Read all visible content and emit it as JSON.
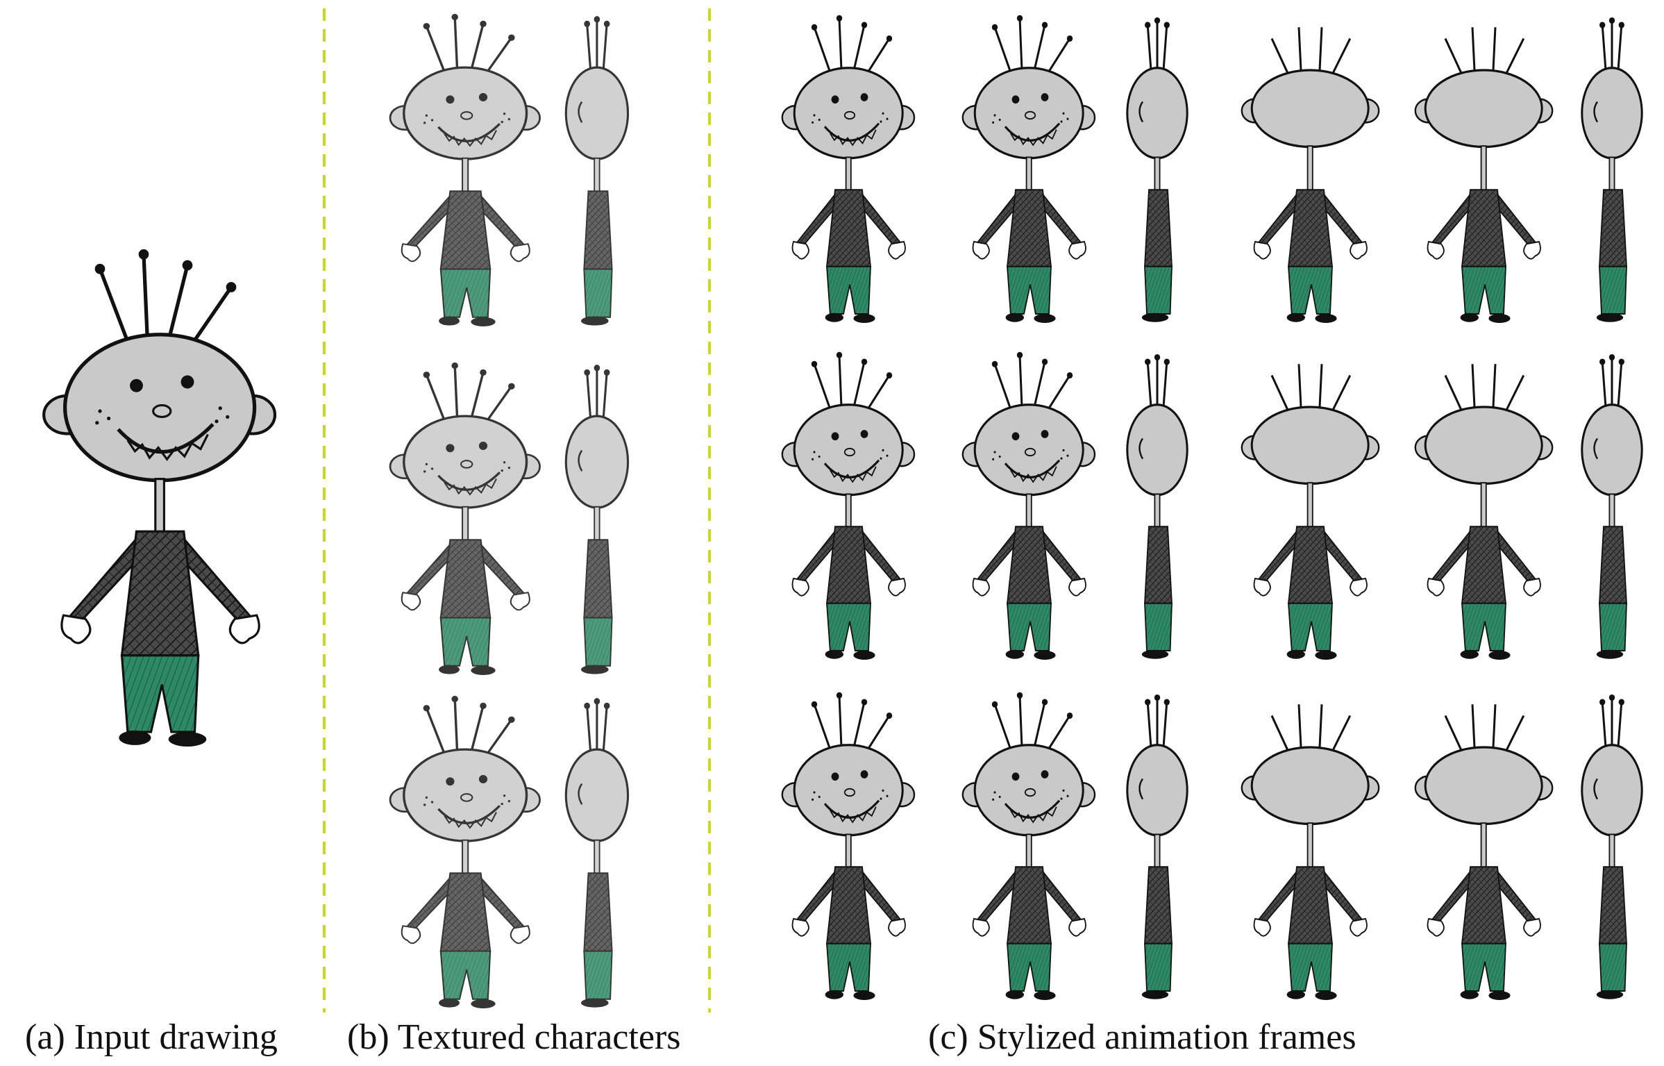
{
  "captions": {
    "a": "(a) Input drawing",
    "b": "(b) Textured characters",
    "c": "(c) Stylized animation frames"
  },
  "colors": {
    "background": "#ffffff",
    "divider": "#c8d92a",
    "head_fill": "#c9c9c9",
    "ink": "#111111",
    "sweater": "#3b3b3b",
    "pants": "#2e8a66",
    "textured_head": "#d8d8d8"
  },
  "panels": {
    "input": {
      "figures": 1
    },
    "textured": {
      "rows": 3,
      "views": [
        "front",
        "side"
      ]
    },
    "frames": {
      "rows": 3,
      "views": [
        "front",
        "three-quarter",
        "side",
        "back",
        "back-three-quarter",
        "side-back"
      ]
    }
  }
}
